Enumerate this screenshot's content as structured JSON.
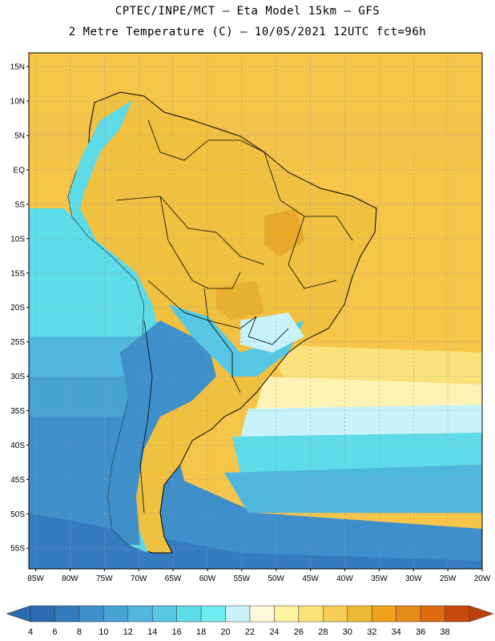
{
  "header": {
    "line1": "CPTEC/INPE/MCT –  Eta Model 15km – GFS",
    "line2": "2 Metre Temperature (C) – 10/05/2021 12UTC fct=96h"
  },
  "map": {
    "lon_range": [
      -86,
      -20
    ],
    "lat_range": [
      -58,
      17
    ],
    "lat_ticks": [
      {
        "value": 15,
        "label": "15N"
      },
      {
        "value": 10,
        "label": "10N"
      },
      {
        "value": 5,
        "label": "5N"
      },
      {
        "value": 0,
        "label": "EQ"
      },
      {
        "value": -5,
        "label": "5S"
      },
      {
        "value": -10,
        "label": "10S"
      },
      {
        "value": -15,
        "label": "15S"
      },
      {
        "value": -20,
        "label": "20S"
      },
      {
        "value": -25,
        "label": "25S"
      },
      {
        "value": -30,
        "label": "30S"
      },
      {
        "value": -35,
        "label": "35S"
      },
      {
        "value": -40,
        "label": "40S"
      },
      {
        "value": -45,
        "label": "45S"
      },
      {
        "value": -50,
        "label": "50S"
      },
      {
        "value": -55,
        "label": "55S"
      }
    ],
    "lon_ticks": [
      {
        "value": -85,
        "label": "85W"
      },
      {
        "value": -80,
        "label": "80W"
      },
      {
        "value": -75,
        "label": "75W"
      },
      {
        "value": -70,
        "label": "70W"
      },
      {
        "value": -65,
        "label": "65W"
      },
      {
        "value": -60,
        "label": "60W"
      },
      {
        "value": -55,
        "label": "55W"
      },
      {
        "value": -50,
        "label": "50W"
      },
      {
        "value": -45,
        "label": "45W"
      },
      {
        "value": -40,
        "label": "40W"
      },
      {
        "value": -35,
        "label": "35W"
      },
      {
        "value": -30,
        "label": "30W"
      },
      {
        "value": -25,
        "label": "25W"
      },
      {
        "value": -20,
        "label": "20W"
      }
    ],
    "colors": {
      "ocean_warm": "#f5c64a",
      "ocean_mid": "#fce27a",
      "ocean_cool": "#fff3b4",
      "land": "#f0c040",
      "land_hot": "#e8a828",
      "coast_line": "#000000",
      "grid": "#9a9a9a"
    }
  },
  "colorbar": {
    "labels": [
      "4",
      "6",
      "8",
      "10",
      "12",
      "14",
      "16",
      "18",
      "20",
      "22",
      "24",
      "26",
      "28",
      "30",
      "32",
      "34",
      "36",
      "38"
    ],
    "low_color": "#2b6cb0",
    "high_color": "#b8420e",
    "colors": [
      "#2b6cb0",
      "#347cbe",
      "#3f8fca",
      "#48a3d4",
      "#4fb6dd",
      "#56c8e3",
      "#5ddbe8",
      "#70ebf0",
      "#c8f3fa",
      "#fff7dc",
      "#fef3a3",
      "#fde27a",
      "#f6cd56",
      "#eeba36",
      "#f0a21a",
      "#e88a1a",
      "#de6a10",
      "#c84a0a"
    ]
  }
}
